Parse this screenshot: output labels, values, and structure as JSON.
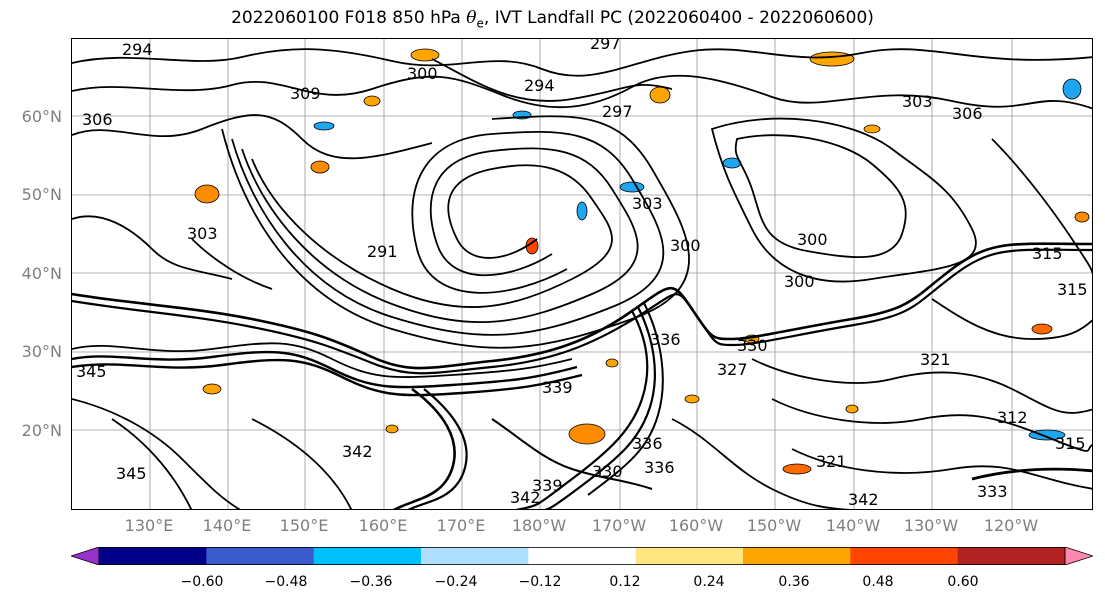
{
  "title": {
    "prefix": "2022060100 F018 850 hPa ",
    "symbol": "θ",
    "subscript": "e",
    "suffix": ", IVT Landfall PC (2022060400 - 2022060600)"
  },
  "map": {
    "lat_labels": [
      "60°N",
      "50°N",
      "40°N",
      "30°N",
      "20°N"
    ],
    "lon_labels": [
      "130°E",
      "140°E",
      "150°E",
      "160°E",
      "170°E",
      "180°W",
      "170°W",
      "160°W",
      "150°W",
      "140°W",
      "130°W",
      "120°W"
    ],
    "contour_labels": [
      "294",
      "309",
      "300",
      "294",
      "297",
      "297",
      "303",
      "306",
      "303",
      "291",
      "303",
      "300",
      "300",
      "306",
      "300",
      "315",
      "315",
      "321",
      "312",
      "315",
      "345",
      "342",
      "339",
      "336",
      "330",
      "327",
      "342",
      "336",
      "330",
      "321",
      "342",
      "333",
      "345",
      "339",
      "336"
    ],
    "contour_color": "#000000",
    "positive_anomaly_color": "#ffa500",
    "negative_anomaly_color": "#1ea7f0"
  },
  "colorbar": {
    "ticks": [
      "−0.60",
      "−0.48",
      "−0.36",
      "−0.24",
      "−0.12",
      "0.12",
      "0.24",
      "0.36",
      "0.48",
      "0.60"
    ],
    "colors": [
      "#9932cc",
      "#00008b",
      "#3a5bcc",
      "#00bfff",
      "#b0e0ff",
      "#ffffff",
      "#ffe680",
      "#ffa500",
      "#ff4500",
      "#b22222",
      "#ff88b0"
    ]
  }
}
